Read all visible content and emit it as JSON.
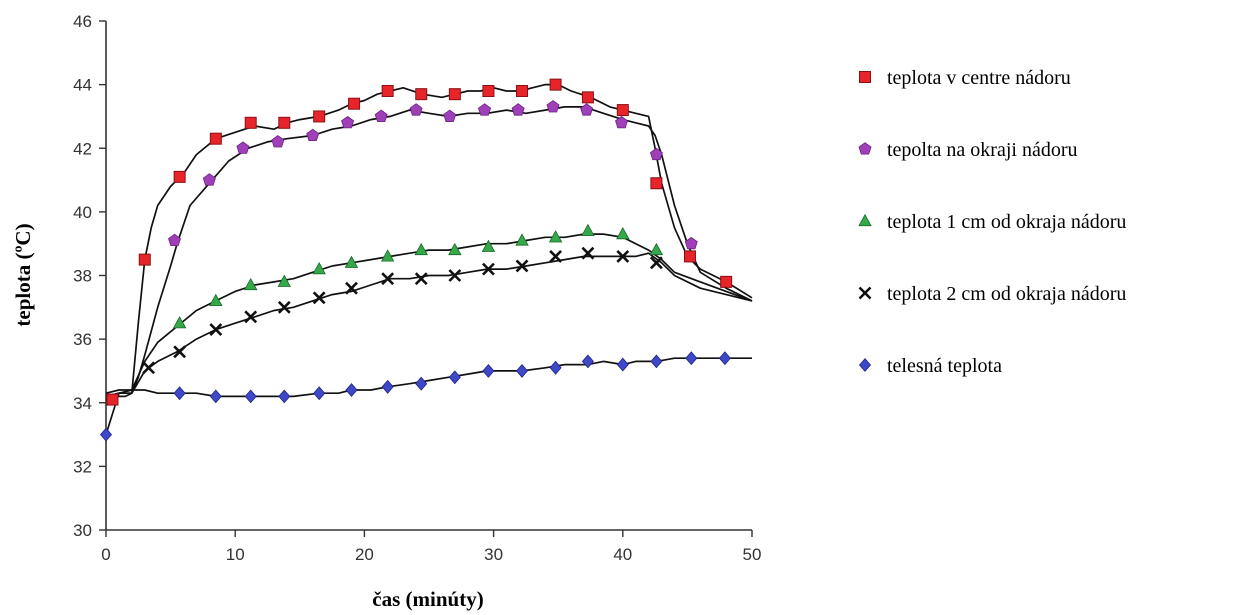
{
  "chart_data": {
    "type": "line",
    "xlabel": "čas (minúty)",
    "ylabel": "teplota (ºC)",
    "xlim": [
      0,
      50
    ],
    "ylim": [
      30,
      46
    ],
    "xticks": [
      0,
      10,
      20,
      30,
      40,
      50
    ],
    "yticks": [
      30,
      32,
      34,
      36,
      38,
      40,
      42,
      44,
      46
    ],
    "grid": false,
    "legend_position": "right",
    "series": [
      {
        "name": "teplota v centre nádoru",
        "marker": "square",
        "color": "#e8242b",
        "x": [
          0,
          0.5,
          1,
          1.5,
          2,
          2.5,
          3,
          3.5,
          4,
          5,
          6,
          7,
          8.5,
          10,
          11.5,
          13,
          14,
          15,
          16.5,
          18,
          19,
          20,
          21,
          22,
          23,
          24.5,
          26,
          27,
          28,
          29,
          30,
          31,
          32,
          33,
          34,
          35,
          36,
          37.5,
          39,
          40,
          41,
          42,
          42.5,
          43,
          44,
          45,
          46,
          48,
          50
        ],
        "y": [
          34.1,
          34.2,
          34.2,
          34.2,
          34.3,
          36.5,
          38.5,
          39.5,
          40.2,
          40.8,
          41.2,
          41.8,
          42.3,
          42.5,
          42.7,
          42.6,
          42.8,
          42.9,
          43.0,
          43.2,
          43.4,
          43.5,
          43.7,
          43.8,
          43.9,
          43.7,
          43.6,
          43.7,
          43.8,
          43.8,
          43.9,
          43.8,
          43.8,
          43.9,
          44.0,
          44.0,
          43.8,
          43.6,
          43.3,
          43.2,
          43.1,
          43.0,
          42.0,
          40.9,
          39.5,
          38.6,
          38.2,
          37.8,
          37.3
        ],
        "markers_x": [
          0.5,
          3,
          5.7,
          8.5,
          11.2,
          13.8,
          16.5,
          19.2,
          21.8,
          24.4,
          27,
          29.6,
          32.2,
          34.8,
          37.3,
          40,
          42.6,
          45.2,
          48
        ],
        "markers_y": [
          34.1,
          38.5,
          41.1,
          42.3,
          42.8,
          42.8,
          43.0,
          43.4,
          43.8,
          43.7,
          43.7,
          43.8,
          43.8,
          44.0,
          43.6,
          43.2,
          40.9,
          38.6,
          37.8
        ]
      },
      {
        "name": "tepolta na okraji nádoru",
        "marker": "pentagon",
        "color": "#a040b8",
        "x": [
          0,
          1,
          2,
          2.5,
          3,
          4,
          5,
          5.5,
          6.5,
          8,
          9.5,
          11,
          12.5,
          14,
          16,
          17.5,
          19,
          20.5,
          22,
          23.5,
          25,
          26.5,
          28,
          29.5,
          31,
          32.5,
          34,
          35.5,
          37,
          38.5,
          40,
          41,
          42,
          42.5,
          43,
          44,
          45,
          46,
          48,
          50
        ],
        "y": [
          34.2,
          34.3,
          34.3,
          34.8,
          35.5,
          37.0,
          38.3,
          39.0,
          40.2,
          40.9,
          41.6,
          42.0,
          42.2,
          42.3,
          42.4,
          42.6,
          42.7,
          42.9,
          43.0,
          43.2,
          43.1,
          43.0,
          43.1,
          43.1,
          43.2,
          43.1,
          43.2,
          43.3,
          43.3,
          43.1,
          42.9,
          42.8,
          42.7,
          42.4,
          41.8,
          40.2,
          39.0,
          38.1,
          37.6,
          37.2
        ],
        "markers_x": [
          5.3,
          8,
          10.6,
          13.3,
          16,
          18.7,
          21.3,
          24,
          26.6,
          29.3,
          31.9,
          34.6,
          37.2,
          39.9,
          42.6,
          45.3
        ],
        "markers_y": [
          39.1,
          41.0,
          42.0,
          42.2,
          42.4,
          42.8,
          43.0,
          43.2,
          43.0,
          43.2,
          43.2,
          43.3,
          43.2,
          42.8,
          41.8,
          39.0
        ]
      },
      {
        "name": "teplota 1 cm od okraja nádoru",
        "marker": "triangle",
        "color": "#35a84a",
        "x": [
          0,
          1,
          2,
          3,
          4,
          5.5,
          7,
          8.5,
          10,
          11.5,
          13,
          14.5,
          16,
          17.5,
          19,
          20.5,
          22,
          23.5,
          25,
          26.5,
          28,
          29.5,
          31,
          32.5,
          34,
          35.5,
          37,
          38.5,
          40,
          41,
          42,
          43,
          44,
          46,
          48,
          50
        ],
        "y": [
          34.3,
          34.4,
          34.4,
          35.3,
          35.9,
          36.4,
          36.9,
          37.2,
          37.5,
          37.7,
          37.8,
          37.9,
          38.1,
          38.3,
          38.4,
          38.5,
          38.6,
          38.7,
          38.8,
          38.8,
          38.9,
          39.0,
          39.0,
          39.1,
          39.2,
          39.2,
          39.3,
          39.3,
          39.2,
          39.0,
          38.8,
          38.5,
          38.1,
          37.8,
          37.5,
          37.2
        ],
        "markers_x": [
          5.7,
          8.5,
          11.2,
          13.8,
          16.5,
          19,
          21.8,
          24.4,
          27,
          29.6,
          32.2,
          34.8,
          37.3,
          40,
          42.6
        ],
        "markers_y": [
          36.5,
          37.2,
          37.7,
          37.8,
          38.2,
          38.4,
          38.6,
          38.8,
          38.8,
          38.9,
          39.1,
          39.2,
          39.4,
          39.3,
          38.8
        ]
      },
      {
        "name": "teplota 2 cm od okraja nádoru",
        "marker": "x",
        "color": "#111111",
        "x": [
          0,
          1,
          2,
          3,
          4,
          5.5,
          7,
          8.5,
          10,
          11.5,
          13,
          14.5,
          16,
          17.5,
          19,
          20.5,
          22,
          23.5,
          25,
          26.5,
          28,
          29.5,
          31,
          32.5,
          34,
          35.5,
          37,
          38.5,
          40,
          41,
          42,
          43,
          44,
          46,
          48,
          50
        ],
        "y": [
          34.2,
          34.3,
          34.3,
          35.0,
          35.3,
          35.6,
          36.0,
          36.3,
          36.5,
          36.7,
          36.9,
          37.0,
          37.2,
          37.4,
          37.5,
          37.7,
          37.9,
          37.9,
          38.0,
          38.0,
          38.1,
          38.2,
          38.2,
          38.3,
          38.4,
          38.5,
          38.6,
          38.6,
          38.6,
          38.6,
          38.7,
          38.4,
          38.0,
          37.6,
          37.4,
          37.2
        ],
        "markers_x": [
          3.3,
          5.7,
          8.5,
          11.2,
          13.8,
          16.5,
          19,
          21.8,
          24.4,
          27,
          29.6,
          32.2,
          34.8,
          37.3,
          40,
          42.6
        ],
        "markers_y": [
          35.1,
          35.6,
          36.3,
          36.7,
          37.0,
          37.3,
          37.6,
          37.9,
          37.9,
          38.0,
          38.2,
          38.3,
          38.6,
          38.7,
          38.6,
          38.4
        ]
      },
      {
        "name": "telesná teplota",
        "marker": "diamond",
        "color": "#3f48c8",
        "x": [
          0,
          1,
          2,
          3,
          4,
          5.7,
          7,
          8.5,
          10,
          11.5,
          13,
          14.5,
          16.5,
          18,
          19,
          20.5,
          21.8,
          23.5,
          25,
          26.5,
          28,
          29.5,
          31,
          32.2,
          34,
          35.5,
          37.3,
          38.5,
          40,
          41,
          42.6,
          44,
          45.3,
          47,
          48.5,
          50
        ],
        "y": [
          33.0,
          34.3,
          34.4,
          34.4,
          34.3,
          34.3,
          34.3,
          34.2,
          34.2,
          34.2,
          34.2,
          34.2,
          34.3,
          34.3,
          34.4,
          34.4,
          34.5,
          34.6,
          34.7,
          34.8,
          34.9,
          35.0,
          35.0,
          35.0,
          35.1,
          35.2,
          35.2,
          35.3,
          35.2,
          35.3,
          35.3,
          35.4,
          35.4,
          35.4,
          35.4,
          35.4
        ],
        "markers_x": [
          0,
          5.7,
          8.5,
          11.2,
          13.8,
          16.5,
          19,
          21.8,
          24.4,
          27,
          29.6,
          32.2,
          34.8,
          37.3,
          40,
          42.6,
          45.3,
          47.9
        ],
        "markers_y": [
          33.0,
          34.3,
          34.2,
          34.2,
          34.2,
          34.3,
          34.4,
          34.5,
          34.6,
          34.8,
          35.0,
          35.0,
          35.1,
          35.3,
          35.2,
          35.3,
          35.4,
          35.4
        ]
      }
    ]
  }
}
